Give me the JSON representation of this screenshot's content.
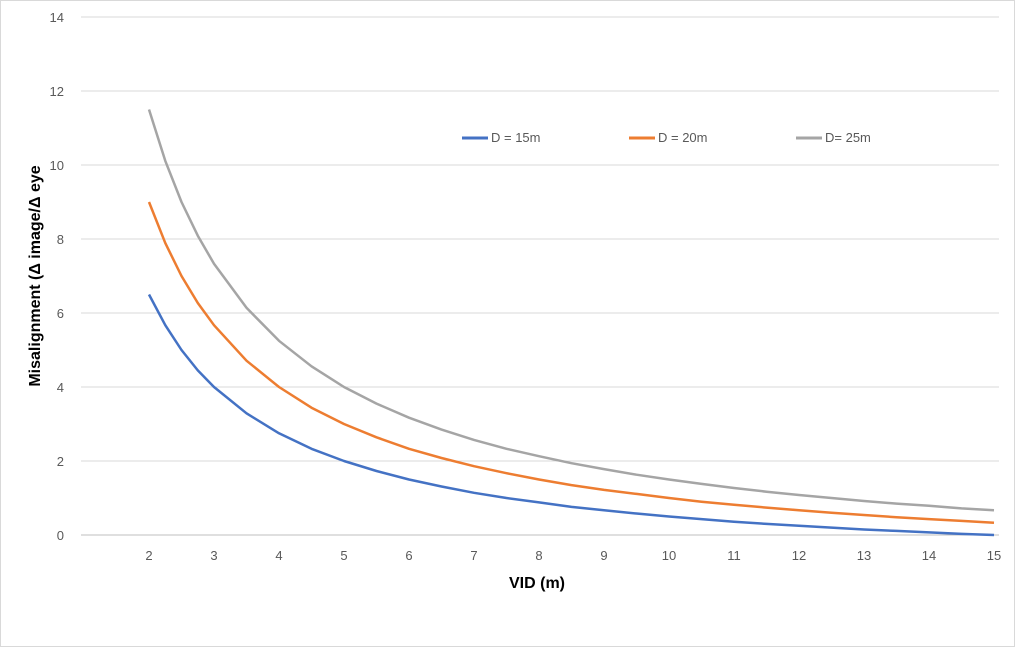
{
  "chart_data": {
    "type": "line",
    "title": "",
    "xlabel": "VID (m)",
    "ylabel": "Misalignment  (Δ image/Δ eye",
    "xlim": [
      1,
      15
    ],
    "ylim": [
      0,
      14
    ],
    "xticks": [
      2,
      3,
      4,
      5,
      6,
      7,
      8,
      9,
      10,
      11,
      12,
      13,
      14,
      15
    ],
    "yticks": [
      0,
      2,
      4,
      6,
      8,
      10,
      12,
      14
    ],
    "grid": "horizontal",
    "legend_position": "top-right",
    "x": [
      2,
      2.25,
      2.5,
      2.75,
      3,
      3.5,
      4,
      4.5,
      5,
      5.5,
      6,
      6.5,
      7,
      7.5,
      8,
      8.5,
      9,
      9.5,
      10,
      10.5,
      11,
      11.5,
      12,
      12.5,
      13,
      13.5,
      14,
      14.5,
      15
    ],
    "series": [
      {
        "name": "D = 15m",
        "color": "#4472C4",
        "values": [
          6.5,
          5.67,
          5,
          4.45,
          4,
          3.29,
          2.75,
          2.33,
          2,
          1.73,
          1.5,
          1.31,
          1.14,
          1,
          0.88,
          0.76,
          0.67,
          0.58,
          0.5,
          0.43,
          0.36,
          0.3,
          0.25,
          0.2,
          0.15,
          0.11,
          0.07,
          0.03,
          0
        ]
      },
      {
        "name": "D = 20m",
        "color": "#ED7D31",
        "values": [
          9,
          7.89,
          7,
          6.27,
          5.67,
          4.71,
          4,
          3.44,
          3,
          2.64,
          2.33,
          2.08,
          1.86,
          1.67,
          1.5,
          1.35,
          1.22,
          1.11,
          1,
          0.9,
          0.82,
          0.74,
          0.67,
          0.6,
          0.54,
          0.48,
          0.43,
          0.38,
          0.33
        ]
      },
      {
        "name": "D= 25m",
        "color": "#A5A5A5",
        "values": [
          11.5,
          10.11,
          9,
          8.09,
          7.33,
          6.14,
          5.25,
          4.56,
          4,
          3.55,
          3.17,
          2.85,
          2.57,
          2.33,
          2.13,
          1.94,
          1.78,
          1.63,
          1.5,
          1.38,
          1.27,
          1.17,
          1.08,
          1,
          0.92,
          0.85,
          0.79,
          0.72,
          0.67
        ]
      }
    ]
  }
}
